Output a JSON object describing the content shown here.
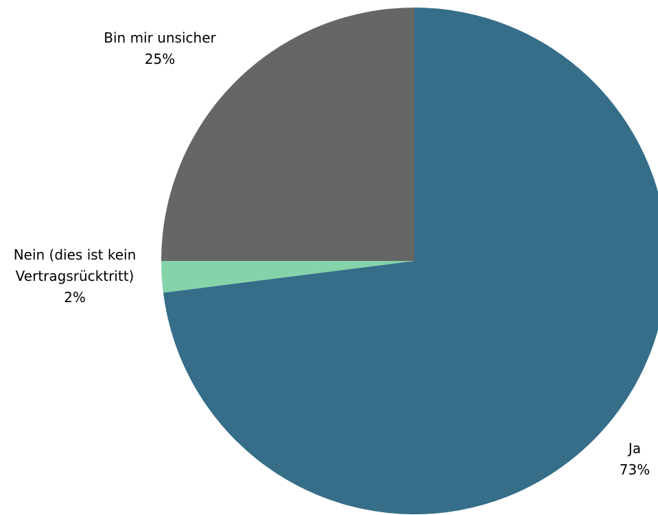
{
  "chart_data": {
    "type": "pie",
    "title": "",
    "start_angle_deg": 0,
    "direction": "clockwise",
    "slices": [
      {
        "label_lines": [
          "Ja"
        ],
        "value": 73,
        "value_label": "73%",
        "color": "#366E8A"
      },
      {
        "label_lines": [
          "Nein (dies ist kein",
          "Vertragsrücktritt)"
        ],
        "value": 2,
        "value_label": "2%",
        "color": "#84D3A9"
      },
      {
        "label_lines": [
          "Bin mir unsicher"
        ],
        "value": 25,
        "value_label": "25%",
        "color": "#666666"
      }
    ]
  }
}
